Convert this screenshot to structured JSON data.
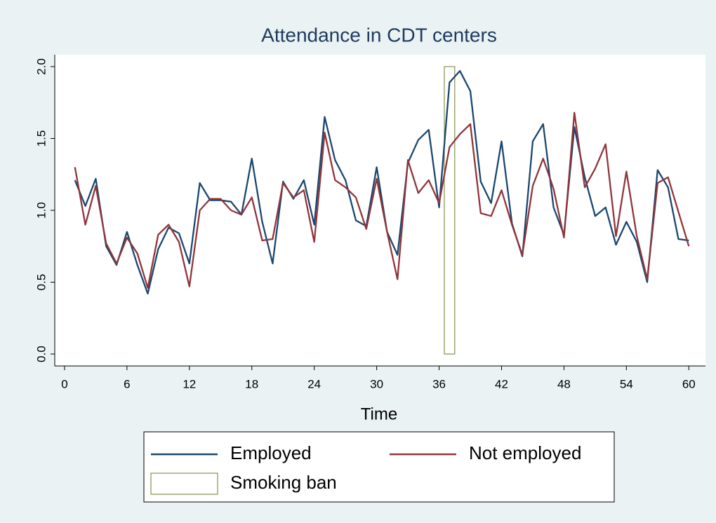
{
  "chart_data": {
    "type": "line",
    "title": "Attendance in CDT centers",
    "x_label": "Time",
    "x": [
      1,
      2,
      3,
      4,
      5,
      6,
      7,
      8,
      9,
      10,
      11,
      12,
      13,
      14,
      15,
      16,
      17,
      18,
      19,
      20,
      21,
      22,
      23,
      24,
      25,
      26,
      27,
      28,
      29,
      30,
      31,
      32,
      33,
      34,
      35,
      36,
      37,
      38,
      39,
      40,
      41,
      42,
      43,
      44,
      45,
      46,
      47,
      48,
      49,
      50,
      51,
      52,
      53,
      54,
      55,
      56,
      57,
      58,
      59,
      60
    ],
    "series": [
      {
        "name": "Employed",
        "color": "#1a476f",
        "values": [
          1.21,
          1.03,
          1.22,
          0.75,
          0.62,
          0.85,
          0.62,
          0.42,
          0.73,
          0.88,
          0.84,
          0.63,
          1.19,
          1.07,
          1.07,
          1.06,
          0.97,
          1.36,
          0.92,
          0.63,
          1.2,
          1.08,
          1.21,
          0.9,
          1.65,
          1.35,
          1.21,
          0.93,
          0.89,
          1.3,
          0.85,
          0.69,
          1.33,
          1.49,
          1.56,
          1.02,
          1.89,
          1.97,
          1.83,
          1.2,
          1.05,
          1.48,
          0.91,
          0.68,
          1.48,
          1.6,
          1.02,
          0.83,
          1.58,
          1.23,
          0.96,
          1.02,
          0.76,
          0.92,
          0.78,
          0.5,
          1.28,
          1.16,
          0.8,
          0.79
        ]
      },
      {
        "name": "Not employed",
        "color": "#90353b",
        "values": [
          1.3,
          0.9,
          1.17,
          0.77,
          0.63,
          0.81,
          0.7,
          0.46,
          0.83,
          0.9,
          0.78,
          0.47,
          1.0,
          1.08,
          1.08,
          1.0,
          0.97,
          1.09,
          0.79,
          0.8,
          1.19,
          1.09,
          1.14,
          0.78,
          1.54,
          1.21,
          1.16,
          1.09,
          0.87,
          1.22,
          0.85,
          0.52,
          1.35,
          1.12,
          1.21,
          1.05,
          1.44,
          1.53,
          1.6,
          0.98,
          0.96,
          1.14,
          0.9,
          0.69,
          1.17,
          1.36,
          1.15,
          0.81,
          1.68,
          1.16,
          1.29,
          1.46,
          0.82,
          1.27,
          0.82,
          0.52,
          1.19,
          1.23,
          0.99,
          0.75
        ]
      }
    ],
    "bands": [
      {
        "name": "Smoking ban",
        "color": "#8b9a5a",
        "xlim": [
          36.5,
          37.5
        ],
        "ylim": [
          0,
          2
        ]
      }
    ],
    "xlim": [
      -0.94,
      61.6
    ],
    "ylim": [
      -0.083,
      2.083
    ],
    "xticks": [
      0,
      6,
      12,
      18,
      24,
      30,
      36,
      42,
      48,
      54,
      60
    ],
    "yticks": [
      {
        "value": 0,
        "label": "0.0"
      },
      0.5,
      {
        "value": 1,
        "label": "1.0"
      },
      1.5,
      {
        "value": 2,
        "label": "2.0"
      }
    ],
    "legend": "bottom"
  }
}
